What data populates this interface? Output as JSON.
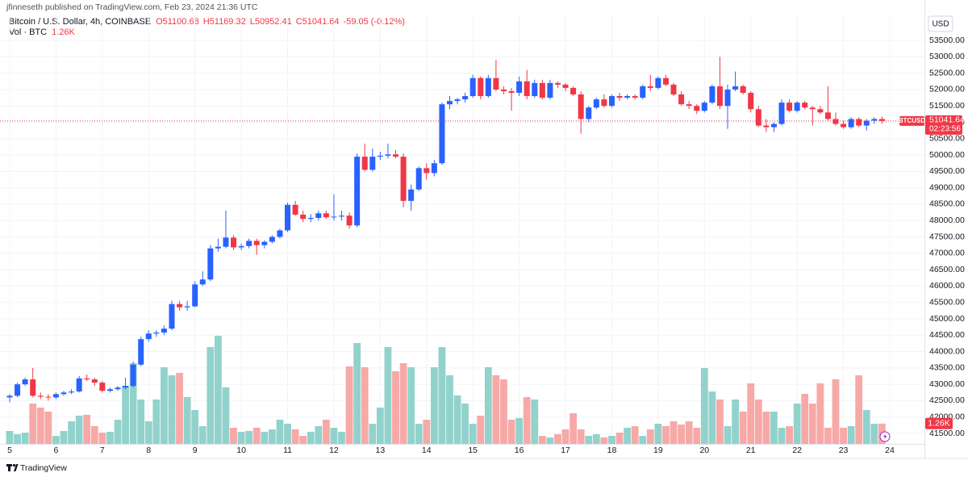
{
  "published": "jfinneseth published on TradingView.com, Feb 23, 2024 21:36 UTC",
  "footer": "TradingView",
  "chart_data": {
    "type": "candlestick",
    "symbol": "Bitcoin / U.S. Dollar, 4h, COINBASE",
    "legend": [
      "O51100.68",
      "H51169.32",
      "L50952.41",
      "C51041.64",
      "-59.05 (-0.12%)"
    ],
    "volume_title": "Vol · BTC",
    "volume_label": "1.26K",
    "currency": "USD",
    "symbol_tag": "BTCUSD",
    "countdown": "02:23:56",
    "categories": [
      "5",
      null,
      null,
      null,
      null,
      null,
      "6",
      null,
      null,
      null,
      null,
      null,
      "7",
      null,
      null,
      null,
      null,
      null,
      "8",
      null,
      null,
      null,
      null,
      null,
      "9",
      null,
      null,
      null,
      null,
      null,
      "10",
      null,
      null,
      null,
      null,
      null,
      "11",
      null,
      null,
      null,
      null,
      null,
      "12",
      null,
      null,
      null,
      null,
      null,
      "13",
      null,
      null,
      null,
      null,
      null,
      "14",
      null,
      null,
      null,
      null,
      null,
      "15",
      null,
      null,
      null,
      null,
      null,
      "16",
      null,
      null,
      null,
      null,
      null,
      "17",
      null,
      null,
      null,
      null,
      null,
      "18",
      null,
      null,
      null,
      null,
      null,
      "19",
      null,
      null,
      null,
      null,
      null,
      "20",
      null,
      null,
      null,
      null,
      null,
      "21",
      null,
      null,
      null,
      null,
      null,
      "22",
      null,
      null,
      null,
      null,
      null,
      "23",
      null,
      null,
      null,
      null,
      null,
      "24"
    ],
    "ohlc": [
      [
        42600,
        42700,
        42450,
        42650
      ],
      [
        42650,
        43050,
        42600,
        43000
      ],
      [
        43000,
        43200,
        42950,
        43150
      ],
      [
        43150,
        43500,
        42600,
        42650
      ],
      [
        42650,
        42750,
        42550,
        42620
      ],
      [
        42620,
        42700,
        42500,
        42600
      ],
      [
        42600,
        42750,
        42550,
        42700
      ],
      [
        42700,
        42800,
        42650,
        42750
      ],
      [
        42750,
        42850,
        42700,
        42780
      ],
      [
        42780,
        43250,
        42750,
        43180
      ],
      [
        43180,
        43300,
        43100,
        43150
      ],
      [
        43150,
        43200,
        42950,
        43050
      ],
      [
        43050,
        43100,
        42750,
        42800
      ],
      [
        42800,
        42900,
        42750,
        42850
      ],
      [
        42850,
        42950,
        42800,
        42900
      ],
      [
        42900,
        43200,
        42850,
        42950
      ],
      [
        42950,
        43700,
        42900,
        43600
      ],
      [
        43600,
        44450,
        43550,
        44380
      ],
      [
        44380,
        44650,
        44300,
        44550
      ],
      [
        44550,
        44650,
        44450,
        44580
      ],
      [
        44580,
        44800,
        44500,
        44700
      ],
      [
        44700,
        45550,
        44650,
        45450
      ],
      [
        45450,
        45550,
        45250,
        45350
      ],
      [
        45350,
        45550,
        45250,
        45380
      ],
      [
        45380,
        46150,
        45350,
        46050
      ],
      [
        46050,
        46450,
        46000,
        46200
      ],
      [
        46200,
        47250,
        46150,
        47150
      ],
      [
        47150,
        47450,
        47050,
        47200
      ],
      [
        47200,
        48300,
        47150,
        47480
      ],
      [
        47480,
        47550,
        47100,
        47180
      ],
      [
        47180,
        47300,
        47100,
        47220
      ],
      [
        47220,
        47450,
        47150,
        47380
      ],
      [
        47380,
        47450,
        46950,
        47250
      ],
      [
        47250,
        47400,
        47150,
        47350
      ],
      [
        47350,
        47550,
        47300,
        47500
      ],
      [
        47500,
        47750,
        47450,
        47700
      ],
      [
        47700,
        48550,
        47650,
        48480
      ],
      [
        48480,
        48600,
        48150,
        48180
      ],
      [
        48180,
        48300,
        47950,
        48050
      ],
      [
        48050,
        48200,
        47950,
        48080
      ],
      [
        48080,
        48300,
        48000,
        48220
      ],
      [
        48220,
        48300,
        48050,
        48100
      ],
      [
        48100,
        48800,
        48000,
        48120
      ],
      [
        48120,
        48300,
        48000,
        48150
      ],
      [
        48150,
        48250,
        47750,
        47850
      ],
      [
        47850,
        50050,
        47800,
        49950
      ],
      [
        49950,
        50350,
        49500,
        49550
      ],
      [
        49550,
        50200,
        49500,
        49950
      ],
      [
        49950,
        50100,
        49850,
        49980
      ],
      [
        49980,
        50350,
        49900,
        50020
      ],
      [
        50020,
        50150,
        49900,
        49950
      ],
      [
        49950,
        50050,
        48400,
        48600
      ],
      [
        48600,
        49100,
        48300,
        48950
      ],
      [
        48950,
        49650,
        48900,
        49600
      ],
      [
        49600,
        49750,
        49250,
        49450
      ],
      [
        49450,
        49850,
        49350,
        49750
      ],
      [
        49750,
        51600,
        49700,
        51550
      ],
      [
        51550,
        51800,
        51400,
        51650
      ],
      [
        51650,
        51750,
        51550,
        51700
      ],
      [
        51700,
        51900,
        51600,
        51800
      ],
      [
        51800,
        52450,
        51750,
        52350
      ],
      [
        52350,
        52400,
        51700,
        51800
      ],
      [
        51800,
        52450,
        51750,
        52350
      ],
      [
        52350,
        52900,
        51950,
        52000
      ],
      [
        52000,
        52100,
        51850,
        51950
      ],
      [
        51950,
        52050,
        51350,
        51900
      ],
      [
        51900,
        52400,
        51800,
        52250
      ],
      [
        52250,
        52600,
        51700,
        51800
      ],
      [
        51800,
        52300,
        51750,
        52200
      ],
      [
        52200,
        52300,
        51700,
        51750
      ],
      [
        51750,
        52300,
        51700,
        52200
      ],
      [
        52200,
        52250,
        52050,
        52150
      ],
      [
        52150,
        52200,
        51950,
        52050
      ],
      [
        52050,
        52100,
        51800,
        51850
      ],
      [
        51850,
        51950,
        50650,
        51100
      ],
      [
        51100,
        51500,
        51000,
        51450
      ],
      [
        51450,
        51750,
        51400,
        51700
      ],
      [
        51700,
        51850,
        51450,
        51500
      ],
      [
        51500,
        51850,
        51450,
        51800
      ],
      [
        51800,
        51900,
        51650,
        51750
      ],
      [
        51750,
        51850,
        51700,
        51800
      ],
      [
        51800,
        51850,
        51700,
        51750
      ],
      [
        51750,
        52150,
        51700,
        52100
      ],
      [
        52100,
        52450,
        51950,
        52050
      ],
      [
        52050,
        52400,
        52000,
        52350
      ],
      [
        52350,
        52450,
        52100,
        52150
      ],
      [
        52150,
        52200,
        51800,
        51850
      ],
      [
        51850,
        51950,
        51500,
        51550
      ],
      [
        51550,
        51650,
        51400,
        51500
      ],
      [
        51500,
        51550,
        51250,
        51350
      ],
      [
        51350,
        51650,
        51300,
        51600
      ],
      [
        51600,
        52150,
        51550,
        52100
      ],
      [
        52100,
        53000,
        51400,
        51500
      ],
      [
        51500,
        52150,
        50800,
        52000
      ],
      [
        52000,
        52550,
        51950,
        52100
      ],
      [
        52100,
        52150,
        51850,
        51900
      ],
      [
        51900,
        51950,
        51300,
        51400
      ],
      [
        51400,
        51500,
        50850,
        50900
      ],
      [
        50900,
        51100,
        50700,
        50850
      ],
      [
        50850,
        51000,
        50700,
        50950
      ],
      [
        50950,
        51700,
        50900,
        51600
      ],
      [
        51600,
        51700,
        51300,
        51350
      ],
      [
        51350,
        51650,
        51300,
        51600
      ],
      [
        51600,
        51650,
        51400,
        51450
      ],
      [
        51450,
        51500,
        50900,
        51400
      ],
      [
        51400,
        51500,
        51250,
        51300
      ],
      [
        51300,
        52100,
        51050,
        51100
      ],
      [
        51100,
        51300,
        50900,
        50950
      ],
      [
        50950,
        51050,
        50800,
        50850
      ],
      [
        50850,
        51150,
        50800,
        51100
      ],
      [
        51100,
        51150,
        50850,
        50900
      ],
      [
        50900,
        51100,
        50750,
        51050
      ],
      [
        51050,
        51150,
        50950,
        51100.68
      ],
      [
        51100.68,
        51169.32,
        50952.41,
        51041.64
      ],
      null
    ],
    "volume": [
      800,
      600,
      700,
      2500,
      2250,
      2000,
      500,
      800,
      1400,
      1750,
      1800,
      1100,
      700,
      750,
      1500,
      3600,
      5000,
      2750,
      1400,
      2750,
      4750,
      4250,
      4400,
      2900,
      2100,
      1100,
      6000,
      6700,
      3500,
      1000,
      750,
      800,
      1000,
      750,
      900,
      1500,
      1250,
      900,
      500,
      750,
      1100,
      1500,
      1000,
      750,
      4800,
      6250,
      4750,
      1250,
      2250,
      6000,
      4500,
      5000,
      4750,
      1250,
      1500,
      4750,
      6000,
      4250,
      3000,
      2500,
      1250,
      1750,
      4750,
      4250,
      4000,
      1500,
      1600,
      2900,
      2750,
      500,
      400,
      600,
      900,
      1900,
      900,
      500,
      600,
      400,
      500,
      700,
      1000,
      1100,
      500,
      900,
      1250,
      1100,
      1400,
      1200,
      1400,
      1000,
      4700,
      3250,
      2750,
      1100,
      2750,
      2000,
      3750,
      2750,
      2000,
      2000,
      1000,
      1100,
      2500,
      3100,
      2500,
      3750,
      1000,
      4000,
      1000,
      1100,
      4250,
      2100,
      1250,
      1260,
      null
    ],
    "ylim": [
      41180,
      54290
    ],
    "yticks": [
      {
        "value": 41500,
        "label": "41500.00"
      },
      {
        "value": 42000,
        "label": "42000.00"
      },
      {
        "value": 42500,
        "label": "42500.00"
      },
      {
        "value": 43000,
        "label": "43000.00"
      },
      {
        "value": 43500,
        "label": "43500.00"
      },
      {
        "value": 44000,
        "label": "44000.00"
      },
      {
        "value": 44500,
        "label": "44500.00"
      },
      {
        "value": 45000,
        "label": "45000.00"
      },
      {
        "value": 45500,
        "label": "45500.00"
      },
      {
        "value": 46000,
        "label": "46000.00"
      },
      {
        "value": 46500,
        "label": "46500.00"
      },
      {
        "value": 47000,
        "label": "47000.00"
      },
      {
        "value": 47500,
        "label": "47500.00"
      },
      {
        "value": 48000,
        "label": "48000.00"
      },
      {
        "value": 48500,
        "label": "48500.00"
      },
      {
        "value": 49000,
        "label": "49000.00"
      },
      {
        "value": 49500,
        "label": "49500.00"
      },
      {
        "value": 50000,
        "label": "50000.00"
      },
      {
        "value": 50500,
        "label": "50500.00"
      },
      {
        "value": 51000,
        "label": "51000.00"
      },
      {
        "value": 51500,
        "label": "51500.00"
      },
      {
        "value": 52000,
        "label": "52000.00"
      },
      {
        "value": 52500,
        "label": "52500.00"
      },
      {
        "value": 53000,
        "label": "53000.00"
      },
      {
        "value": 53500,
        "label": "53500.00"
      }
    ],
    "volume_ylim": [
      0,
      7500
    ],
    "up_color": "#2962ff",
    "down_color": "#f23645",
    "volume_up_color": "#92d2cc",
    "volume_down_color": "#f7a9a7",
    "grid": true
  }
}
